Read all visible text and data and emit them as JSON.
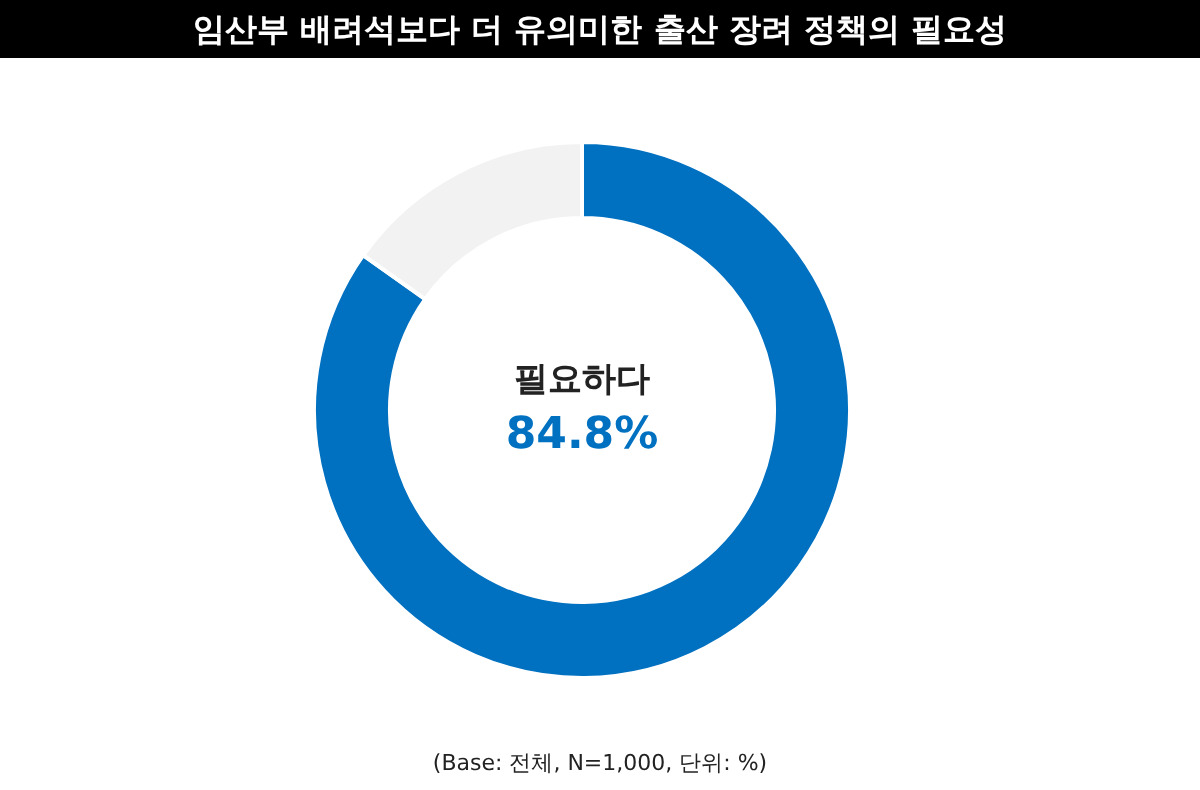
{
  "chart_data": {
    "type": "donut",
    "title": "임산부 배려석보다 더 유의미한 출산 장려 정책의 필요성",
    "categories": [
      "필요하다",
      null
    ],
    "values": [
      84.8,
      15.2
    ],
    "colors": [
      "#0070c0",
      "#f2f2f2"
    ],
    "value_labels": [
      "84.8%",
      null
    ],
    "annotations": [
      "(Base: 전체, N=1,000, 단위: %)"
    ]
  }
}
